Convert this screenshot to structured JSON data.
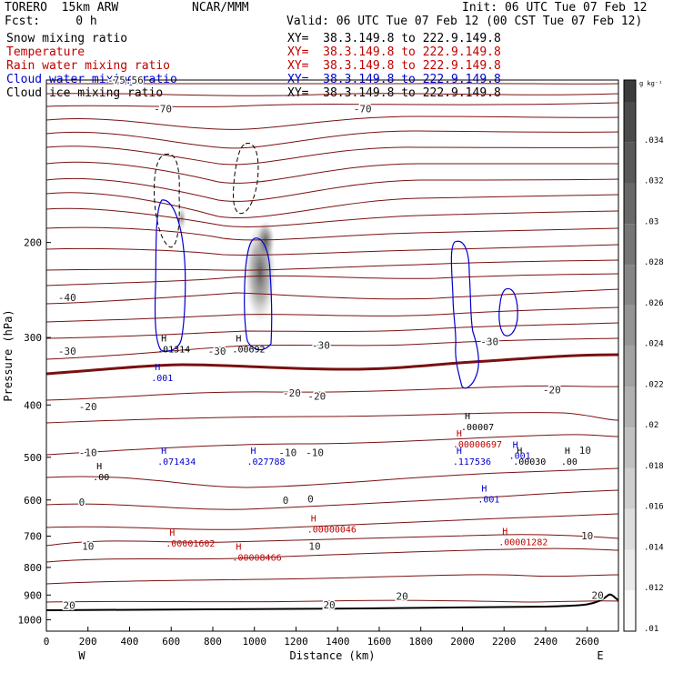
{
  "header": {
    "model": "TORERO  15km ARW",
    "center": "NCAR/MMM",
    "init": "Init: 06 UTC Tue 07 Feb 12",
    "fcst": "Fcst:     0 h",
    "valid": "Valid: 06 UTC Tue 07 Feb 12 (00 CST Tue 07 Feb 12)"
  },
  "fields": [
    {
      "name": "Snow mixing ratio",
      "color": "#000000",
      "xy": "XY=  38.3.149.8 to 222.9.149.8"
    },
    {
      "name": "Temperature",
      "color": "#c00000",
      "xy": "XY=  38.3.149.8 to 222.9.149.8"
    },
    {
      "name": "Rain water mixing ratio",
      "color": "#c00000",
      "xy": "XY=  38.3.149.8 to 222.9.149.8"
    },
    {
      "name": "Cloud water mixing ratio",
      "color": "#0000cc",
      "xy": "XY=  38.3.149.8 to 222.9.149.8"
    },
    {
      "name": "Cloud ice mixing ratio",
      "color": "#000000",
      "xy": "XY=  38.3.149.8 to 222.9.149.8"
    }
  ],
  "colorbar": {
    "unit": "g kg⁻¹",
    "ticks": [
      ".01",
      ".012",
      ".014",
      ".016",
      ".018",
      ".02",
      ".022",
      ".024",
      ".026",
      ".028",
      ".03",
      ".032",
      ".034"
    ]
  },
  "chart_data": {
    "type": "cross-section contour",
    "xlabel": "Distance (km)",
    "ylabel": "Pressure (hPa)",
    "x_ticks": [
      0,
      200,
      400,
      600,
      800,
      1000,
      1200,
      1400,
      1600,
      1800,
      2000,
      2200,
      2400,
      2600
    ],
    "y_ticks": [
      200,
      300,
      400,
      500,
      600,
      700,
      800,
      900,
      1000
    ],
    "xlim": [
      0,
      2750
    ],
    "ylim": [
      1050,
      100
    ],
    "y_scale": "log",
    "end_labels": [
      "W",
      "E"
    ],
    "temperature_color": "#7a1010",
    "temperature_labels": [
      {
        "text": "-75.56",
        "x": 380,
        "p": 100
      },
      {
        "text": "-70",
        "x": 560,
        "p": 113
      },
      {
        "text": "-70",
        "x": 1520,
        "p": 113
      },
      {
        "text": "-40",
        "x": 100,
        "p": 253
      },
      {
        "text": "-30",
        "x": 100,
        "p": 318
      },
      {
        "text": "-30",
        "x": 820,
        "p": 318
      },
      {
        "text": "-30",
        "x": 1320,
        "p": 310
      },
      {
        "text": "-30",
        "x": 2130,
        "p": 305
      },
      {
        "text": "-20",
        "x": 200,
        "p": 403
      },
      {
        "text": "-20",
        "x": 1180,
        "p": 380
      },
      {
        "text": "-20",
        "x": 1300,
        "p": 385
      },
      {
        "text": "-20",
        "x": 2430,
        "p": 375
      },
      {
        "text": "-10",
        "x": 200,
        "p": 490
      },
      {
        "text": "-10",
        "x": 1160,
        "p": 490
      },
      {
        "text": "-10",
        "x": 1290,
        "p": 490
      },
      {
        "text": "10",
        "x": 2590,
        "p": 485
      },
      {
        "text": "0",
        "x": 170,
        "p": 605
      },
      {
        "text": "0",
        "x": 1150,
        "p": 600
      },
      {
        "text": "0",
        "x": 1270,
        "p": 597
      },
      {
        "text": "10",
        "x": 2600,
        "p": 698
      },
      {
        "text": "10",
        "x": 200,
        "p": 730
      },
      {
        "text": "10",
        "x": 1290,
        "p": 730
      },
      {
        "text": "20",
        "x": 1710,
        "p": 905
      },
      {
        "text": "20",
        "x": 2650,
        "p": 900
      },
      {
        "text": "20",
        "x": 110,
        "p": 940
      },
      {
        "text": "20",
        "x": 1360,
        "p": 938
      }
    ],
    "highs": [
      {
        "value": ".01314",
        "x": 560,
        "p": 310,
        "color": "#000000"
      },
      {
        "value": ".00692",
        "x": 920,
        "p": 310,
        "color": "#000000"
      },
      {
        "value": ".001",
        "x": 530,
        "p": 350,
        "color": "#0000cc"
      },
      {
        "value": ".071434",
        "x": 560,
        "p": 500,
        "color": "#0000cc"
      },
      {
        "value": ".027788",
        "x": 990,
        "p": 500,
        "color": "#0000cc"
      },
      {
        "value": ".00",
        "x": 250,
        "p": 535,
        "color": "#000000"
      },
      {
        "value": ".00007",
        "x": 2020,
        "p": 432,
        "color": "#000000"
      },
      {
        "value": ".00000697",
        "x": 1980,
        "p": 465,
        "color": "#c00000"
      },
      {
        "value": ".117536",
        "x": 1980,
        "p": 500,
        "color": "#0000cc"
      },
      {
        "value": ".00030",
        "x": 2270,
        "p": 500,
        "color": "#000000"
      },
      {
        "value": ".001",
        "x": 2250,
        "p": 488,
        "color": "#0000cc"
      },
      {
        "value": ".00",
        "x": 2500,
        "p": 500,
        "color": "#000000"
      },
      {
        "value": ".001",
        "x": 2100,
        "p": 588,
        "color": "#0000cc"
      },
      {
        "value": ".00000046",
        "x": 1280,
        "p": 668,
        "color": "#c00000"
      },
      {
        "value": ".00001602",
        "x": 600,
        "p": 710,
        "color": "#c00000"
      },
      {
        "value": ".00001282",
        "x": 2200,
        "p": 705,
        "color": "#c00000"
      },
      {
        "value": ".00008466",
        "x": 920,
        "p": 753,
        "color": "#c00000"
      }
    ]
  }
}
